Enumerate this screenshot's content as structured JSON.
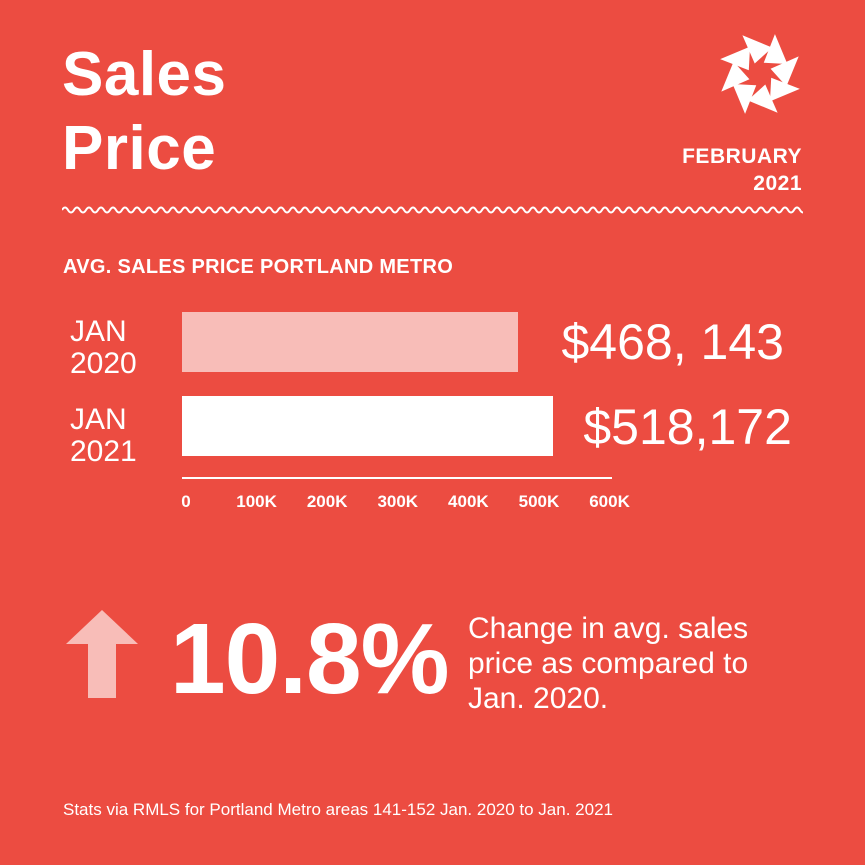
{
  "header": {
    "title_line1": "Sales",
    "title_line2": "Price",
    "period_month": "FEBRUARY",
    "period_year": "2021",
    "logo_icon": "pinwheel-logo-icon"
  },
  "colors": {
    "background": "#ec4c41",
    "bar_2020": "#f8bdb8",
    "bar_2021": "#ffffff",
    "arrow": "#f8bdb8",
    "text": "#ffffff"
  },
  "chart_data": {
    "type": "bar",
    "orientation": "horizontal",
    "title": "AVG. SALES PRICE PORTLAND METRO",
    "categories": [
      {
        "line1": "JAN",
        "line2": "2020"
      },
      {
        "line1": "JAN",
        "line2": "2021"
      }
    ],
    "values": [
      468143,
      518172
    ],
    "value_labels": [
      "$468, 143",
      "$518,172"
    ],
    "xlim": [
      0,
      600000
    ],
    "ticks": [
      0,
      100000,
      200000,
      300000,
      400000,
      500000,
      600000
    ],
    "tick_labels": [
      "0",
      "100K",
      "200K",
      "300K",
      "400K",
      "500K",
      "600K"
    ],
    "grid": false
  },
  "summary": {
    "arrow_icon": "up-arrow-icon",
    "change_pct": "10.8%",
    "desc_line1": "Change in avg. sales",
    "desc_line2": "price as compared to",
    "desc_line3": "Jan. 2020."
  },
  "footer": {
    "source": "Stats via RMLS for Portland Metro areas 141-152 Jan. 2020 to Jan. 2021"
  }
}
